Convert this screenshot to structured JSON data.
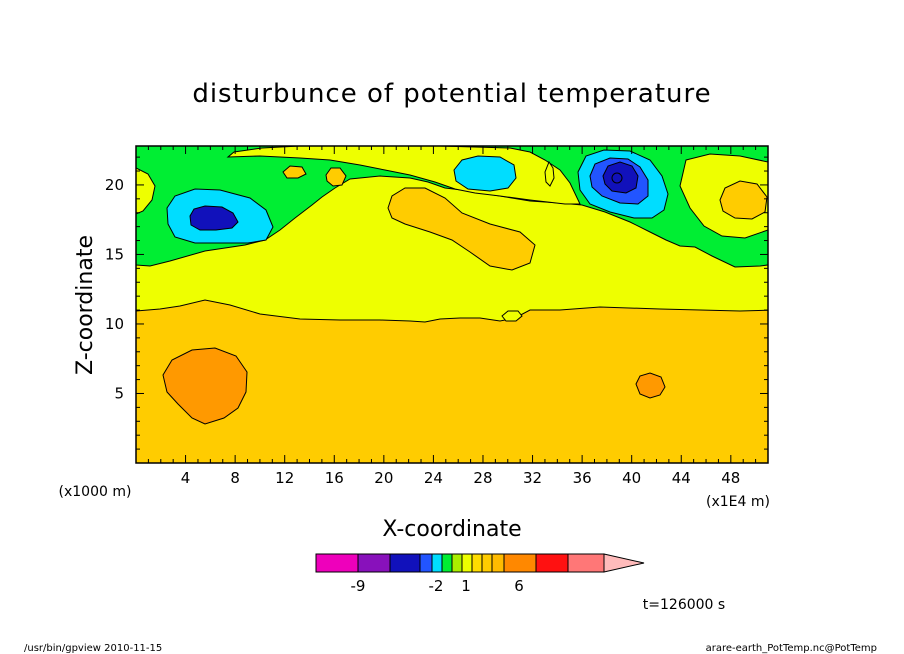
{
  "chart_data": {
    "type": "heatmap",
    "title": "disturbunce of potential temperature",
    "xlabel": "X-coordinate",
    "ylabel": "Z-coordinate",
    "x_unit_left": "(x1000 m)",
    "x_unit_right": "(x1E4 m)",
    "x_range": [
      0,
      51
    ],
    "y_range": [
      0,
      22.8
    ],
    "x_ticks": [
      "4",
      "8",
      "12",
      "16",
      "20",
      "24",
      "28",
      "32",
      "36",
      "40",
      "44",
      "48"
    ],
    "x_tick_values": [
      4,
      8,
      12,
      16,
      20,
      24,
      28,
      32,
      36,
      40,
      44,
      48
    ],
    "y_ticks": [
      "5",
      "10",
      "15",
      "20"
    ],
    "y_tick_values": [
      5,
      10,
      15,
      20
    ],
    "colorbar": {
      "colors": [
        "#ee00bb",
        "#8811bb",
        "#1111bb",
        "#2255ff",
        "#00ddff",
        "#00ee33",
        "#aaee00",
        "#eeff00",
        "#ffdd00",
        "#ffcc00",
        "#ffbb00",
        "#ff8800",
        "#ff1111",
        "#ff7777",
        "#ffbbbb"
      ],
      "labels": [
        "-9",
        "-2",
        "1",
        "6"
      ],
      "label_positions": [
        1,
        6.5,
        8.5,
        11.5
      ]
    },
    "contour_levels": [
      -4,
      -3,
      -2,
      -1,
      0,
      1,
      2,
      3
    ],
    "regions": [
      {
        "level": 1,
        "color": "#ffcc00",
        "description": "lower layer z < ~11"
      },
      {
        "level": 0,
        "color": "#eeff00",
        "description": "middle layer z ~11-15"
      },
      {
        "level": -1,
        "color": "#00ee33",
        "description": "upper layer z > ~15"
      },
      {
        "level": -3,
        "color": "#1111bb",
        "center": [
          6,
          17.6
        ]
      },
      {
        "level": -4,
        "color": "#1111bb",
        "center": [
          39,
          20.5
        ]
      },
      {
        "level": 2,
        "color": "#ff9900",
        "center": [
          6,
          5.8
        ]
      },
      {
        "level": 2,
        "color": "#ff9900",
        "center": [
          42,
          5.5
        ]
      }
    ]
  },
  "annotation": {
    "time": "t=126000 s"
  },
  "footer": {
    "left": "/usr/bin/gpview  2010-11-15",
    "right": "arare-earth_PotTemp.nc@PotTemp"
  },
  "colors": {
    "magenta": "#ee00bb",
    "purple": "#8811bb",
    "navy": "#1111bb",
    "blue": "#2255ff",
    "cyan": "#00ddff",
    "green": "#00ee33",
    "light_green": "#aaee00",
    "yellow": "#eeff00",
    "gold": "#ffcc00",
    "orange": "#ff9900",
    "red": "#ff1111",
    "pink": "#ff7777"
  }
}
